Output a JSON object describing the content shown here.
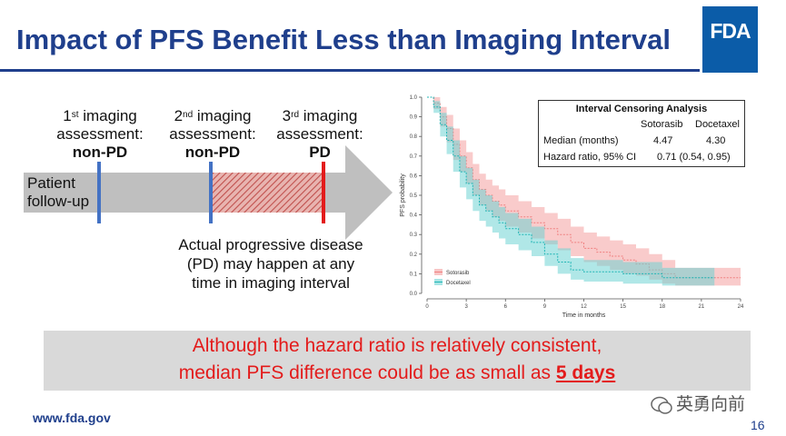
{
  "slide": {
    "title": "Impact of PFS Benefit Less than Imaging Interval",
    "logo_text": "FDA",
    "footer_url": "www.fda.gov",
    "page_number": "16",
    "watermark": "英勇向前"
  },
  "diagram": {
    "patient_label_1": "Patient",
    "patient_label_2": "follow-up",
    "assessments": [
      {
        "ordinal": "1",
        "suffix": "st",
        "line1": "imaging",
        "line2": "assessment:",
        "result": "non-PD"
      },
      {
        "ordinal": "2",
        "suffix": "nd",
        "line1": "imaging",
        "line2": "assessment:",
        "result": "non-PD"
      },
      {
        "ordinal": "3",
        "suffix": "rd",
        "line1": "imaging",
        "line2": "assessment:",
        "result": "PD"
      }
    ],
    "pd_note_1": "Actual progressive disease",
    "pd_note_2": "(PD) may happen at any",
    "pd_note_3": "time in imaging interval",
    "colors": {
      "arrow": "#bfbfbf",
      "marker_blue": "#4472c4",
      "marker_red": "#e31b1b",
      "hatch": "#c0504d"
    }
  },
  "callout": {
    "line1": "Although the hazard ratio is relatively consistent,",
    "line2_prefix": "median PFS difference could be as small as ",
    "line2_highlight": "5 days",
    "color": "#e31b1b"
  },
  "km_table": {
    "title": "Interval Censoring Analysis",
    "col1": "Sotorasib",
    "col2": "Docetaxel",
    "row1_label": "Median (months)",
    "row1_v1": "4.47",
    "row1_v2": "4.30",
    "row2_label": "Hazard ratio, 95% CI",
    "row2_value": "0.71 (0.54, 0.95)"
  },
  "chart_data": {
    "type": "line",
    "title": "",
    "xlabel": "Time in months",
    "ylabel": "PFS probability",
    "xlim": [
      0,
      24
    ],
    "ylim": [
      0,
      1
    ],
    "x_ticks": [
      0,
      3,
      6,
      9,
      12,
      15,
      18,
      21,
      24
    ],
    "y_ticks": [
      0.0,
      0.1,
      0.2,
      0.3,
      0.4,
      0.5,
      0.6,
      0.7,
      0.8,
      0.9,
      1.0
    ],
    "legend": "bottom-left",
    "series": [
      {
        "name": "Sotorasib",
        "color": "#f08080",
        "band_color": "#f4a0a0",
        "x": [
          0,
          0.5,
          1,
          1.5,
          2,
          2.5,
          3,
          3.5,
          4,
          4.5,
          5,
          5.5,
          6,
          7,
          8,
          9,
          10,
          11,
          12,
          13,
          14,
          15,
          16,
          17,
          18,
          19,
          20,
          21,
          22,
          23
        ],
        "y": [
          1.0,
          0.97,
          0.9,
          0.84,
          0.76,
          0.7,
          0.64,
          0.58,
          0.53,
          0.5,
          0.47,
          0.45,
          0.42,
          0.39,
          0.36,
          0.33,
          0.3,
          0.26,
          0.23,
          0.21,
          0.19,
          0.17,
          0.15,
          0.12,
          0.1,
          0.08,
          0.08,
          0.08,
          0.08,
          0.08
        ],
        "lower": [
          1.0,
          0.94,
          0.85,
          0.77,
          0.68,
          0.62,
          0.56,
          0.5,
          0.45,
          0.42,
          0.39,
          0.37,
          0.34,
          0.31,
          0.28,
          0.25,
          0.22,
          0.19,
          0.16,
          0.14,
          0.12,
          0.1,
          0.09,
          0.07,
          0.05,
          0.04,
          0.04,
          0.04,
          0.04,
          0.04
        ],
        "upper": [
          1.0,
          1.0,
          0.95,
          0.91,
          0.84,
          0.78,
          0.72,
          0.66,
          0.61,
          0.58,
          0.55,
          0.53,
          0.5,
          0.47,
          0.44,
          0.41,
          0.38,
          0.34,
          0.31,
          0.29,
          0.27,
          0.25,
          0.23,
          0.2,
          0.17,
          0.13,
          0.13,
          0.13,
          0.13,
          0.13
        ]
      },
      {
        "name": "Docetaxel",
        "color": "#1fb5b5",
        "band_color": "#6fd3d3",
        "x": [
          0,
          0.5,
          1,
          1.5,
          2,
          2.5,
          3,
          3.5,
          4,
          4.5,
          5,
          5.5,
          6,
          7,
          8,
          9,
          10,
          11,
          12,
          13,
          14,
          15,
          16,
          17,
          18,
          19,
          20,
          21
        ],
        "y": [
          1.0,
          0.95,
          0.86,
          0.78,
          0.7,
          0.62,
          0.56,
          0.5,
          0.45,
          0.42,
          0.39,
          0.36,
          0.33,
          0.3,
          0.26,
          0.2,
          0.16,
          0.12,
          0.11,
          0.11,
          0.11,
          0.1,
          0.1,
          0.1,
          0.08,
          0.08,
          0.08,
          0.08
        ],
        "lower": [
          1.0,
          0.92,
          0.8,
          0.71,
          0.62,
          0.54,
          0.48,
          0.42,
          0.37,
          0.34,
          0.31,
          0.28,
          0.25,
          0.22,
          0.19,
          0.14,
          0.1,
          0.07,
          0.06,
          0.06,
          0.06,
          0.05,
          0.05,
          0.05,
          0.04,
          0.04,
          0.04,
          0.04
        ],
        "upper": [
          1.0,
          0.98,
          0.92,
          0.85,
          0.78,
          0.7,
          0.64,
          0.58,
          0.53,
          0.5,
          0.47,
          0.44,
          0.41,
          0.38,
          0.34,
          0.27,
          0.23,
          0.18,
          0.17,
          0.17,
          0.17,
          0.16,
          0.16,
          0.16,
          0.13,
          0.13,
          0.13,
          0.13
        ]
      }
    ]
  }
}
